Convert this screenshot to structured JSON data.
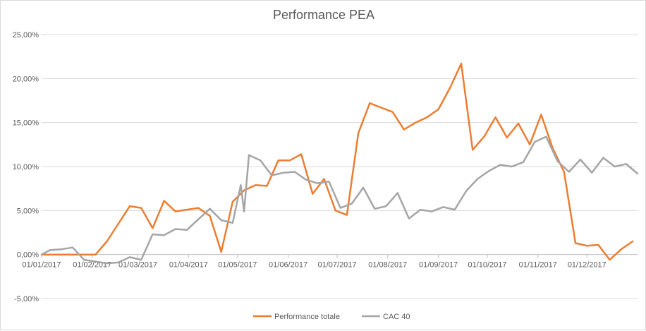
{
  "chart_data": {
    "type": "line",
    "title": "Performance PEA",
    "xlabel": "",
    "ylabel": "",
    "ylim": [
      -5,
      25
    ],
    "y_tick_values": [
      -5,
      0,
      5,
      10,
      15,
      20,
      25
    ],
    "y_tick_labels": [
      "-5,00%",
      "0,00%",
      "5,00%",
      "10,00%",
      "15,00%",
      "20,00%",
      "25,00%"
    ],
    "x_tick_labels": [
      "01/01/2017",
      "01/02/2017",
      "01/03/2017",
      "01/04/2017",
      "01/05/2017",
      "01/06/2017",
      "01/07/2017",
      "01/08/2017",
      "01/09/2017",
      "01/10/2017",
      "01/11/2017",
      "01/12/2017"
    ],
    "x_tick_dates": [
      "2017-01-01",
      "2017-02-01",
      "2017-03-01",
      "2017-04-01",
      "2017-05-01",
      "2017-06-01",
      "2017-07-01",
      "2017-08-01",
      "2017-09-01",
      "2017-10-01",
      "2017-11-01",
      "2017-12-01"
    ],
    "xlim": [
      "2017-01-01",
      "2018-01-01"
    ],
    "grid": true,
    "legend_position": "bottom",
    "series": [
      {
        "name": "Performance totale",
        "color": "#ed7d31",
        "points": [
          [
            "2017-01-01",
            0.0
          ],
          [
            "2017-01-06",
            0.0
          ],
          [
            "2017-01-13",
            0.0
          ],
          [
            "2017-01-20",
            0.0
          ],
          [
            "2017-01-27",
            0.0
          ],
          [
            "2017-02-03",
            0.0
          ],
          [
            "2017-02-10",
            1.5
          ],
          [
            "2017-02-17",
            3.5
          ],
          [
            "2017-02-24",
            5.5
          ],
          [
            "2017-03-03",
            5.3
          ],
          [
            "2017-03-10",
            3.0
          ],
          [
            "2017-03-17",
            6.1
          ],
          [
            "2017-03-24",
            4.9
          ],
          [
            "2017-03-31",
            5.1
          ],
          [
            "2017-04-07",
            5.3
          ],
          [
            "2017-04-14",
            4.4
          ],
          [
            "2017-04-21",
            0.3
          ],
          [
            "2017-04-28",
            6.0
          ],
          [
            "2017-05-05",
            7.3
          ],
          [
            "2017-05-12",
            7.9
          ],
          [
            "2017-05-19",
            7.8
          ],
          [
            "2017-05-26",
            10.7
          ],
          [
            "2017-06-02",
            10.7
          ],
          [
            "2017-06-09",
            11.4
          ],
          [
            "2017-06-16",
            6.9
          ],
          [
            "2017-06-23",
            8.6
          ],
          [
            "2017-06-30",
            5.0
          ],
          [
            "2017-07-07",
            4.5
          ],
          [
            "2017-07-14",
            13.8
          ],
          [
            "2017-07-21",
            17.2
          ],
          [
            "2017-07-28",
            16.7
          ],
          [
            "2017-08-04",
            16.2
          ],
          [
            "2017-08-11",
            14.2
          ],
          [
            "2017-08-18",
            15.0
          ],
          [
            "2017-08-25",
            15.6
          ],
          [
            "2017-09-01",
            16.5
          ],
          [
            "2017-09-08",
            18.9
          ],
          [
            "2017-09-15",
            21.7
          ],
          [
            "2017-09-22",
            11.9
          ],
          [
            "2017-09-29",
            13.4
          ],
          [
            "2017-10-06",
            15.6
          ],
          [
            "2017-10-13",
            13.3
          ],
          [
            "2017-10-20",
            14.9
          ],
          [
            "2017-10-27",
            12.5
          ],
          [
            "2017-11-03",
            15.9
          ],
          [
            "2017-11-10",
            12.1
          ],
          [
            "2017-11-17",
            9.4
          ],
          [
            "2017-11-24",
            1.3
          ],
          [
            "2017-12-01",
            1.0
          ],
          [
            "2017-12-08",
            1.1
          ],
          [
            "2017-12-15",
            -0.6
          ],
          [
            "2017-12-22",
            0.6
          ],
          [
            "2017-12-29",
            1.5
          ]
        ]
      },
      {
        "name": "CAC 40",
        "color": "#a5a5a5",
        "points": [
          [
            "2017-01-01",
            0.0
          ],
          [
            "2017-01-06",
            0.5
          ],
          [
            "2017-01-13",
            0.6
          ],
          [
            "2017-01-20",
            0.8
          ],
          [
            "2017-01-27",
            -0.6
          ],
          [
            "2017-02-03",
            -0.8
          ],
          [
            "2017-02-10",
            -1.0
          ],
          [
            "2017-02-17",
            -0.9
          ],
          [
            "2017-02-24",
            -0.3
          ],
          [
            "2017-03-03",
            -0.6
          ],
          [
            "2017-03-10",
            2.3
          ],
          [
            "2017-03-17",
            2.2
          ],
          [
            "2017-03-24",
            2.9
          ],
          [
            "2017-03-31",
            2.8
          ],
          [
            "2017-04-07",
            4.0
          ],
          [
            "2017-04-14",
            5.2
          ],
          [
            "2017-04-21",
            3.9
          ],
          [
            "2017-04-28",
            3.6
          ],
          [
            "2017-05-03",
            7.9
          ],
          [
            "2017-05-05",
            4.9
          ],
          [
            "2017-05-08",
            11.3
          ],
          [
            "2017-05-15",
            10.7
          ],
          [
            "2017-05-22",
            9.0
          ],
          [
            "2017-05-29",
            9.3
          ],
          [
            "2017-06-05",
            9.4
          ],
          [
            "2017-06-12",
            8.5
          ],
          [
            "2017-06-19",
            8.1
          ],
          [
            "2017-06-26",
            8.3
          ],
          [
            "2017-07-03",
            5.3
          ],
          [
            "2017-07-10",
            5.8
          ],
          [
            "2017-07-17",
            7.6
          ],
          [
            "2017-07-24",
            5.2
          ],
          [
            "2017-07-31",
            5.5
          ],
          [
            "2017-08-07",
            7.0
          ],
          [
            "2017-08-14",
            4.1
          ],
          [
            "2017-08-21",
            5.1
          ],
          [
            "2017-08-28",
            4.9
          ],
          [
            "2017-09-04",
            5.4
          ],
          [
            "2017-09-11",
            5.1
          ],
          [
            "2017-09-18",
            7.2
          ],
          [
            "2017-09-25",
            8.6
          ],
          [
            "2017-10-02",
            9.5
          ],
          [
            "2017-10-09",
            10.2
          ],
          [
            "2017-10-16",
            10.0
          ],
          [
            "2017-10-23",
            10.5
          ],
          [
            "2017-10-30",
            12.8
          ],
          [
            "2017-11-06",
            13.4
          ],
          [
            "2017-11-13",
            10.6
          ],
          [
            "2017-11-20",
            9.4
          ],
          [
            "2017-11-27",
            10.8
          ],
          [
            "2017-12-04",
            9.3
          ],
          [
            "2017-12-11",
            11.0
          ],
          [
            "2017-12-18",
            10.0
          ],
          [
            "2017-12-25",
            10.3
          ],
          [
            "2018-01-01",
            9.2
          ]
        ]
      }
    ]
  }
}
